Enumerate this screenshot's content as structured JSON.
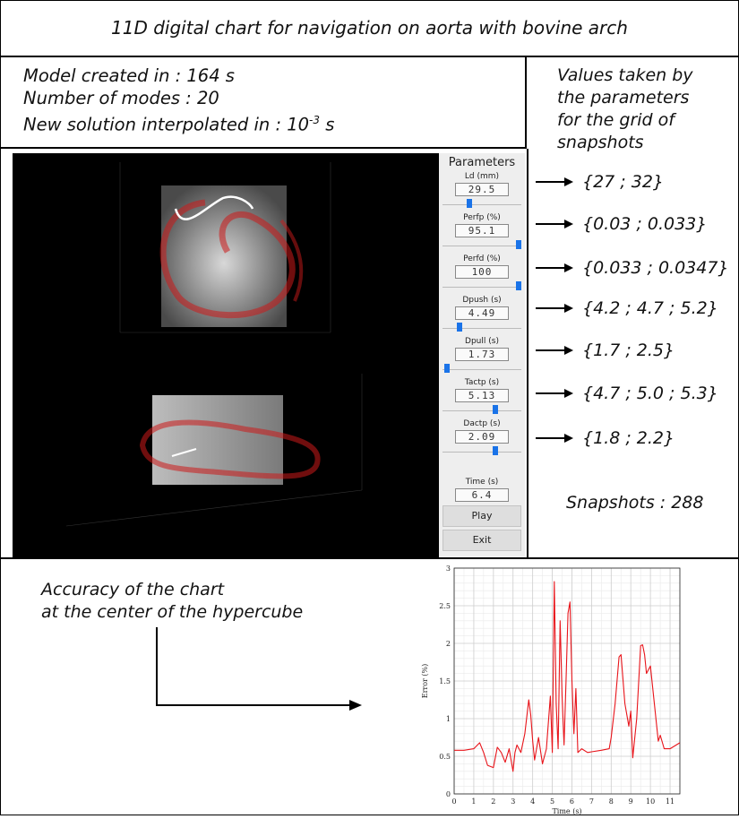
{
  "title": "11D digital chart for navigation on aorta with bovine arch",
  "info": {
    "line1": "Model created in : 164 s",
    "line2": "Number of modes : 20",
    "line3_prefix": "New solution interpolated in : 10",
    "line3_exp": "-3",
    "line3_suffix": " s"
  },
  "values": {
    "title_l1": "Values taken by",
    "title_l2": "the parameters",
    "title_l3": "for the grid of",
    "title_l4": "snapshots",
    "rows": [
      "{27 ; 32}",
      "{0.03 ; 0.033}",
      "{0.033 ; 0.0347}",
      "{4.2 ; 4.7 ; 5.2}",
      "{1.7 ; 2.5}",
      "{4.7 ; 5.0 ; 5.3}",
      "{1.8 ; 2.2}"
    ],
    "snapshots": "Snapshots : 288"
  },
  "panel": {
    "title": "Parameters",
    "params": [
      {
        "label": "Ld (mm)",
        "value": "29.5",
        "level": 0.33
      },
      {
        "label": "Perfp (%)",
        "value": "95.1",
        "level": 1.0
      },
      {
        "label": "Perfd (%)",
        "value": "100",
        "level": 1.0
      },
      {
        "label": "Dpush (s)",
        "value": "4.49",
        "level": 0.2
      },
      {
        "label": "Dpull (s)",
        "value": "1.73",
        "level": 0.02
      },
      {
        "label": "Tactp (s)",
        "value": "5.13",
        "level": 0.68
      },
      {
        "label": "Dactp (s)",
        "value": "2.09",
        "level": 0.68
      }
    ],
    "time_label": "Time (s)",
    "time_value": "6.4",
    "play_label": "Play",
    "exit_label": "Exit"
  },
  "accuracy": {
    "line1": "Accuracy of the chart",
    "line2": "at the center of the hypercube"
  },
  "colors": {
    "curve": "#e8141a",
    "slider": "#1a73e8"
  },
  "chart_data": {
    "type": "line",
    "xlabel": "Time (s)",
    "ylabel": "Error (%)",
    "xlim": [
      0,
      11.5
    ],
    "ylim": [
      0,
      3
    ],
    "xticks": [
      0,
      1,
      2,
      3,
      4,
      5,
      6,
      7,
      8,
      9,
      10,
      11
    ],
    "yticks": [
      0,
      0.5,
      1,
      1.5,
      2,
      2.5,
      3
    ],
    "grid": true,
    "series": [
      {
        "x": [
          0,
          0.5,
          1,
          1.3,
          1.5,
          1.7,
          2,
          2.2,
          2.4,
          2.6,
          2.8,
          3,
          3.1,
          3.2,
          3.4,
          3.6,
          3.8,
          3.9,
          4,
          4.1,
          4.3,
          4.5,
          4.7,
          4.9,
          5,
          5.1,
          5.2,
          5.3,
          5.4,
          5.5,
          5.6,
          5.7,
          5.8,
          5.9,
          6,
          6.1,
          6.2,
          6.3,
          6.5,
          6.8,
          7,
          7.5,
          7.9,
          8,
          8.2,
          8.4,
          8.5,
          8.7,
          8.9,
          9,
          9.1,
          9.3,
          9.5,
          9.6,
          9.7,
          9.8,
          10,
          10.2,
          10.4,
          10.5,
          10.7,
          11,
          11.5
        ],
        "y": [
          0.58,
          0.58,
          0.6,
          0.68,
          0.55,
          0.38,
          0.35,
          0.62,
          0.55,
          0.42,
          0.6,
          0.3,
          0.55,
          0.65,
          0.55,
          0.8,
          1.25,
          1.05,
          0.7,
          0.45,
          0.75,
          0.4,
          0.6,
          1.3,
          0.55,
          2.82,
          1.2,
          0.6,
          2.3,
          1.3,
          0.65,
          1.5,
          2.4,
          2.55,
          1.5,
          0.8,
          1.4,
          0.55,
          0.6,
          0.55,
          0.56,
          0.58,
          0.6,
          0.75,
          1.2,
          1.82,
          1.85,
          1.2,
          0.9,
          1.1,
          0.48,
          1.0,
          1.97,
          1.98,
          1.85,
          1.6,
          1.7,
          1.2,
          0.7,
          0.78,
          0.6,
          0.6,
          0.68
        ]
      }
    ]
  }
}
